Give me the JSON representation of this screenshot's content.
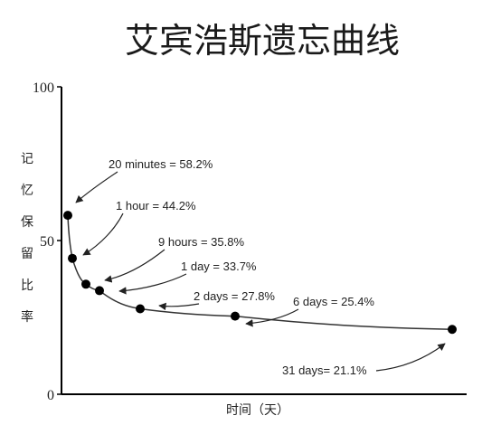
{
  "chart_data": {
    "type": "line",
    "title": "艾宾浩斯遗忘曲线",
    "ylabel": "记忆保留比率",
    "xlabel": "时间（天）",
    "ylim": [
      0,
      100
    ],
    "xlim": [
      0,
      31
    ],
    "grid": false,
    "yticks": [
      "0",
      "50",
      "100"
    ],
    "colors": {
      "line": "#222222",
      "marker": "#000000",
      "axis": "#000000"
    },
    "points": [
      {
        "x": 0.0139,
        "y": 58.2,
        "label": "20 minutes = 58.2%"
      },
      {
        "x": 0.0417,
        "y": 44.2,
        "label": "1 hour = 44.2%"
      },
      {
        "x": 0.375,
        "y": 35.8,
        "label": "9 hours = 35.8%"
      },
      {
        "x": 1,
        "y": 33.7,
        "label": "1 day = 33.7%"
      },
      {
        "x": 2,
        "y": 27.8,
        "label": "2 days = 27.8%"
      },
      {
        "x": 6,
        "y": 25.4,
        "label": "6 days = 25.4%"
      },
      {
        "x": 31,
        "y": 21.1,
        "label": "31 days= 21.1%"
      }
    ]
  }
}
